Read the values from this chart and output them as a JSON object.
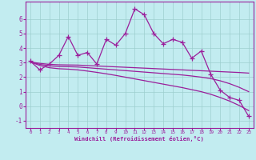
{
  "xlabel": "Windchill (Refroidissement éolien,°C)",
  "x": [
    0,
    1,
    2,
    3,
    4,
    5,
    6,
    7,
    8,
    9,
    10,
    11,
    12,
    13,
    14,
    15,
    16,
    17,
    18,
    19,
    20,
    21,
    22,
    23
  ],
  "y_jagged": [
    3.1,
    2.5,
    2.9,
    3.5,
    4.8,
    3.5,
    3.7,
    2.9,
    4.6,
    4.2,
    5.0,
    6.7,
    6.3,
    5.0,
    4.3,
    4.6,
    4.4,
    3.3,
    3.8,
    2.2,
    1.1,
    0.6,
    0.4,
    -0.7
  ],
  "y_smooth1": [
    3.05,
    2.95,
    2.88,
    2.85,
    2.84,
    2.83,
    2.8,
    2.77,
    2.74,
    2.71,
    2.68,
    2.65,
    2.62,
    2.59,
    2.56,
    2.53,
    2.5,
    2.47,
    2.44,
    2.41,
    2.38,
    2.35,
    2.32,
    2.28
  ],
  "y_smooth2": [
    3.05,
    2.88,
    2.78,
    2.73,
    2.72,
    2.7,
    2.65,
    2.6,
    2.55,
    2.5,
    2.45,
    2.4,
    2.35,
    2.3,
    2.25,
    2.2,
    2.15,
    2.08,
    2.0,
    1.9,
    1.75,
    1.55,
    1.3,
    1.0
  ],
  "y_smooth3": [
    3.05,
    2.8,
    2.65,
    2.58,
    2.55,
    2.5,
    2.42,
    2.33,
    2.23,
    2.12,
    2.0,
    1.88,
    1.76,
    1.64,
    1.52,
    1.4,
    1.28,
    1.14,
    1.0,
    0.82,
    0.6,
    0.35,
    0.05,
    -0.3
  ],
  "line_color": "#9B1F9B",
  "bg_color": "#C2ECF0",
  "grid_color": "#9DCECE",
  "ylim": [
    -1.5,
    7.2
  ],
  "xlim": [
    -0.5,
    23.5
  ],
  "yticks": [
    -1,
    0,
    1,
    2,
    3,
    4,
    5,
    6
  ],
  "xticks": [
    0,
    1,
    2,
    3,
    4,
    5,
    6,
    7,
    8,
    9,
    10,
    11,
    12,
    13,
    14,
    15,
    16,
    17,
    18,
    19,
    20,
    21,
    22,
    23
  ],
  "marker": "+",
  "markersize": 4,
  "linewidth": 0.9
}
